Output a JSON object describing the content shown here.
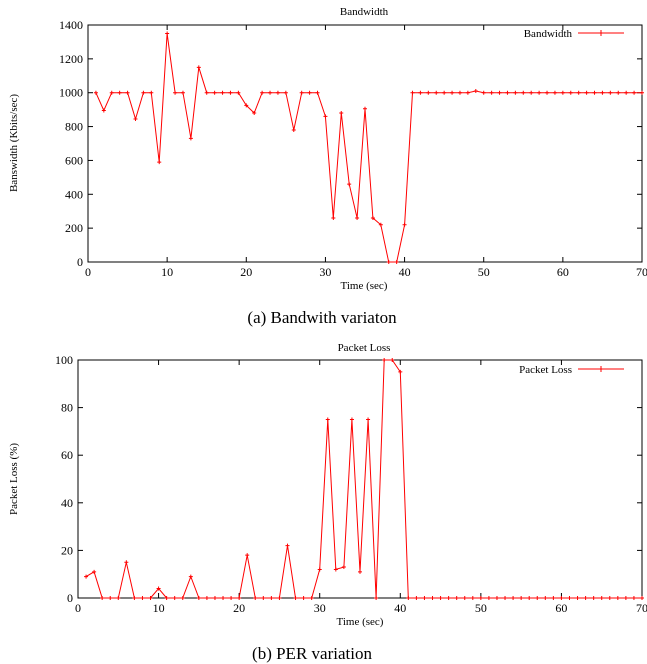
{
  "series_color": "#ff0000",
  "captions": [
    "(a) Bandwith variaton",
    "(b) PER variation"
  ],
  "chart_data": [
    {
      "type": "line",
      "title": "Bandwidth",
      "xlabel": "Time (sec)",
      "ylabel": "Banswidth (Kbits/sec)",
      "xlim": [
        0,
        70
      ],
      "ylim": [
        0,
        1400
      ],
      "xticks": [
        0,
        10,
        20,
        30,
        40,
        50,
        60,
        70
      ],
      "yticks": [
        0,
        200,
        400,
        600,
        800,
        1000,
        1200,
        1400
      ],
      "grid": false,
      "legend_position": "top-right",
      "series": [
        {
          "name": "Bandwidth",
          "x": [
            1,
            2,
            3,
            4,
            5,
            6,
            7,
            8,
            9,
            10,
            11,
            12,
            13,
            14,
            15,
            16,
            17,
            18,
            19,
            20,
            21,
            22,
            23,
            24,
            25,
            26,
            27,
            28,
            29,
            30,
            31,
            32,
            33,
            34,
            35,
            36,
            37,
            38,
            39,
            40,
            41,
            42,
            43,
            44,
            45,
            46,
            47,
            48,
            49,
            50,
            51,
            52,
            53,
            54,
            55,
            56,
            57,
            58,
            59,
            60,
            61,
            62,
            63,
            64,
            65,
            66,
            67,
            68,
            69,
            70
          ],
          "y": [
            1000,
            895,
            1000,
            1000,
            1000,
            845,
            1000,
            1000,
            590,
            1350,
            1000,
            1000,
            730,
            1150,
            1000,
            1000,
            1000,
            1000,
            1000,
            925,
            880,
            1000,
            1000,
            1000,
            1000,
            780,
            1000,
            1000,
            1000,
            860,
            260,
            880,
            460,
            260,
            905,
            260,
            220,
            0,
            0,
            220,
            1000,
            1000,
            1000,
            1000,
            1000,
            1000,
            1000,
            1000,
            1010,
            1000,
            1000,
            1000,
            1000,
            1000,
            1000,
            1000,
            1000,
            1000,
            1000,
            1000,
            1000,
            1000,
            1000,
            1000,
            1000,
            1000,
            1000,
            1000,
            1000,
            1000
          ]
        }
      ]
    },
    {
      "type": "line",
      "title": "Packet Loss",
      "xlabel": "Time (sec)",
      "ylabel": "Packet Loss (%)",
      "xlim": [
        0,
        70
      ],
      "ylim": [
        0,
        100
      ],
      "xticks": [
        0,
        10,
        20,
        30,
        40,
        50,
        60,
        70
      ],
      "yticks": [
        0,
        20,
        40,
        60,
        80,
        100
      ],
      "grid": false,
      "legend_position": "top-right",
      "series": [
        {
          "name": "Packet Loss",
          "x": [
            1,
            2,
            3,
            4,
            5,
            6,
            7,
            8,
            9,
            10,
            11,
            12,
            13,
            14,
            15,
            16,
            17,
            18,
            19,
            20,
            21,
            22,
            23,
            24,
            25,
            26,
            27,
            28,
            29,
            30,
            31,
            32,
            33,
            34,
            35,
            36,
            37,
            38,
            39,
            40,
            41,
            42,
            43,
            44,
            45,
            46,
            47,
            48,
            49,
            50,
            51,
            52,
            53,
            54,
            55,
            56,
            57,
            58,
            59,
            60,
            61,
            62,
            63,
            64,
            65,
            66,
            67,
            68,
            69,
            70
          ],
          "y": [
            9,
            11,
            0,
            0,
            0,
            15,
            0,
            0,
            0,
            4,
            0,
            0,
            0,
            9,
            0,
            0,
            0,
            0,
            0,
            0,
            18,
            0,
            0,
            0,
            0,
            22,
            0,
            0,
            0,
            12,
            75,
            12,
            13,
            75,
            11,
            75,
            0,
            100,
            100,
            95,
            0,
            0,
            0,
            0,
            0,
            0,
            0,
            0,
            0,
            0,
            0,
            0,
            0,
            0,
            0,
            0,
            0,
            0,
            0,
            0,
            0,
            0,
            0,
            0,
            0,
            0,
            0,
            0,
            0,
            0
          ]
        }
      ]
    }
  ]
}
